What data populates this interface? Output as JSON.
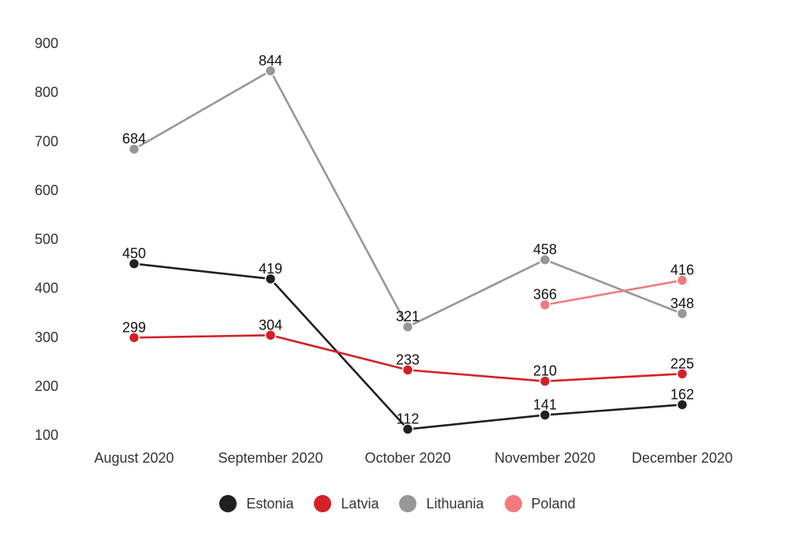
{
  "chart_data": {
    "type": "line",
    "title": "",
    "xlabel": "",
    "ylabel": "",
    "categories": [
      "August 2020",
      "September 2020",
      "October 2020",
      "November 2020",
      "December 2020"
    ],
    "yticks": [
      100,
      200,
      300,
      400,
      500,
      600,
      700,
      800,
      900
    ],
    "ylim": [
      100,
      900
    ],
    "grid": false,
    "legend_position": "bottom",
    "series": [
      {
        "name": "Estonia",
        "color": "#231f20",
        "values": [
          450,
          419,
          112,
          141,
          162
        ]
      },
      {
        "name": "Latvia",
        "color": "#d42027",
        "values": [
          299,
          304,
          233,
          210,
          225
        ]
      },
      {
        "name": "Lithuania",
        "color": "#9a9597",
        "values": [
          684,
          844,
          321,
          458,
          348
        ]
      },
      {
        "name": "Poland",
        "color": "#f27a7d",
        "values": [
          null,
          null,
          null,
          366,
          416
        ]
      }
    ]
  }
}
